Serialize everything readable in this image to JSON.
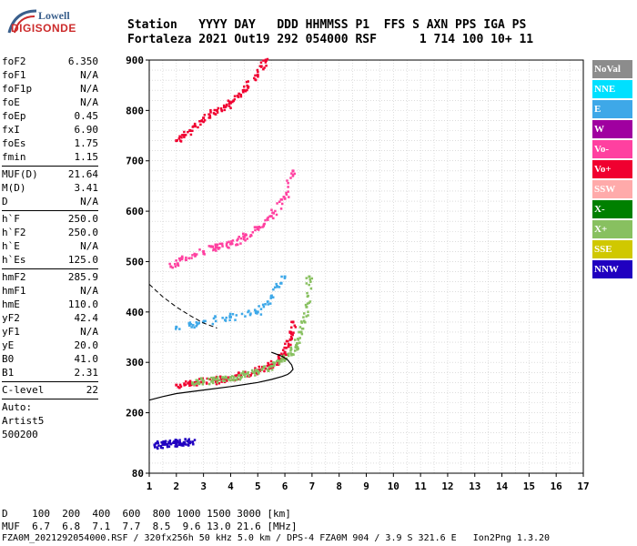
{
  "logo": {
    "line1": "Lowell",
    "line2": "DIGISONDE"
  },
  "header": {
    "line1": "Station   YYYY DAY   DDD HHMMSS P1  FFS S AXN PPS IGA PS",
    "line2": "Fortaleza 2021 Out19 292 054000 RSF      1 714 100 10+ 11"
  },
  "params": {
    "group1": [
      {
        "label": "foF2",
        "value": "6.350"
      },
      {
        "label": "foF1",
        "value": "N/A"
      },
      {
        "label": "foF1p",
        "value": "N/A"
      },
      {
        "label": "foE",
        "value": "N/A"
      },
      {
        "label": "foEp",
        "value": "0.45"
      },
      {
        "label": "fxI",
        "value": "6.90"
      },
      {
        "label": "foEs",
        "value": "1.75"
      },
      {
        "label": "fmin",
        "value": "1.15"
      }
    ],
    "group2": [
      {
        "label": "MUF(D)",
        "value": "21.64"
      },
      {
        "label": "M(D)",
        "value": "3.41"
      },
      {
        "label": "D",
        "value": "N/A"
      }
    ],
    "group3": [
      {
        "label": "h`F",
        "value": "250.0"
      },
      {
        "label": "h`F2",
        "value": "250.0"
      },
      {
        "label": "h`E",
        "value": "N/A"
      },
      {
        "label": "h`Es",
        "value": "125.0"
      }
    ],
    "group4": [
      {
        "label": "hmF2",
        "value": "285.9"
      },
      {
        "label": "hmF1",
        "value": "N/A"
      },
      {
        "label": "hmE",
        "value": "110.0"
      },
      {
        "label": "yF2",
        "value": "42.4"
      },
      {
        "label": "yF1",
        "value": "N/A"
      },
      {
        "label": "yE",
        "value": "20.0"
      },
      {
        "label": "B0",
        "value": "41.0"
      },
      {
        "label": "B1",
        "value": "2.31"
      }
    ],
    "group5": [
      {
        "label": "C-level",
        "value": "22"
      }
    ],
    "auto_lines": [
      "Auto:",
      "Artist5",
      "500200"
    ]
  },
  "legend": [
    {
      "label": "NoVal",
      "color": "#8c8c8c"
    },
    {
      "label": "NNE",
      "color": "#00e0ff"
    },
    {
      "label": "E",
      "color": "#3ea8e8"
    },
    {
      "label": "W",
      "color": "#a000a0"
    },
    {
      "label": "Vo-",
      "color": "#ff40a0"
    },
    {
      "label": "Vo+",
      "color": "#f00030"
    },
    {
      "label": "SSW",
      "color": "#ffaaaa"
    },
    {
      "label": "X-",
      "color": "#008000"
    },
    {
      "label": "X+",
      "color": "#88c060"
    },
    {
      "label": "SSE",
      "color": "#d0c800"
    },
    {
      "label": "NNW",
      "color": "#2000c0"
    }
  ],
  "bottom": {
    "d_line": "D    100  200  400  600  800 1000 1500 3000 [km]",
    "muf_line": "MUF  6.7  6.8  7.1  7.7  8.5  9.6 13.0 21.6 [MHz]"
  },
  "footer": "FZA0M_2021292054000.RSF / 320fx256h 50 kHz 5.0 km / DPS-4 FZA0M 904 / 3.9 S 321.6 E   Ion2Png 1.3.20",
  "chart_data": {
    "type": "scatter",
    "xlim": [
      1,
      17
    ],
    "ylim": [
      80,
      900
    ],
    "xticks": [
      1,
      2,
      3,
      4,
      5,
      6,
      7,
      8,
      9,
      10,
      11,
      12,
      13,
      14,
      15,
      16,
      17
    ],
    "yticks": [
      80,
      200,
      300,
      400,
      500,
      600,
      700,
      800,
      900
    ],
    "grid": true,
    "traces": [
      {
        "name": "F2 trace O",
        "color": "#f00030",
        "x": [
          2.0,
          2.5,
          3.0,
          3.5,
          4.0,
          4.5,
          5.0,
          5.5,
          5.8,
          6.0,
          6.2,
          6.3
        ],
        "y": [
          255,
          258,
          262,
          265,
          270,
          276,
          283,
          295,
          305,
          320,
          345,
          380
        ]
      },
      {
        "name": "F2 trace X",
        "color": "#88c060",
        "x": [
          2.6,
          3.0,
          3.5,
          4.0,
          4.5,
          5.0,
          5.5,
          6.0,
          6.4,
          6.6,
          6.8,
          6.9
        ],
        "y": [
          258,
          262,
          266,
          270,
          276,
          283,
          292,
          305,
          330,
          360,
          410,
          470
        ]
      },
      {
        "name": "F2 2nd hop",
        "color": "#ff40a0",
        "x": [
          1.8,
          2.2,
          3.0,
          3.5,
          4.0,
          4.5,
          5.0,
          5.5,
          6.0,
          6.3
        ],
        "y": [
          490,
          505,
          520,
          528,
          535,
          548,
          565,
          590,
          625,
          680
        ]
      },
      {
        "name": "F2 3rd hop",
        "color": "#f00030",
        "x": [
          2.0,
          2.5,
          3.0,
          3.5,
          4.0,
          4.5,
          5.0,
          5.3
        ],
        "y": [
          740,
          760,
          785,
          800,
          815,
          840,
          870,
          900
        ]
      },
      {
        "name": "Es",
        "color": "#2000c0",
        "x": [
          1.2,
          1.5,
          1.8,
          2.0,
          2.3,
          2.6
        ],
        "y": [
          136,
          137,
          138,
          140,
          141,
          142
        ]
      },
      {
        "name": "Spread E",
        "color": "#3ea8e8",
        "x": [
          2.0,
          3.0,
          4.0,
          5.0,
          5.5,
          6.0
        ],
        "y": [
          370,
          380,
          390,
          400,
          430,
          470
        ]
      }
    ],
    "profile": {
      "x": [
        1.0,
        1.5,
        2.0,
        3.0,
        4.0,
        5.0,
        5.5,
        5.9,
        6.1,
        6.2,
        6.3,
        6.25,
        6.1,
        5.9,
        5.5
      ],
      "y": [
        225,
        232,
        238,
        245,
        252,
        260,
        266,
        272,
        276,
        280,
        286,
        295,
        305,
        312,
        320
      ]
    },
    "topside": {
      "x": [
        1.0,
        1.5,
        2.0,
        2.5,
        3.0,
        3.5
      ],
      "y": [
        455,
        430,
        410,
        393,
        378,
        368
      ]
    }
  }
}
